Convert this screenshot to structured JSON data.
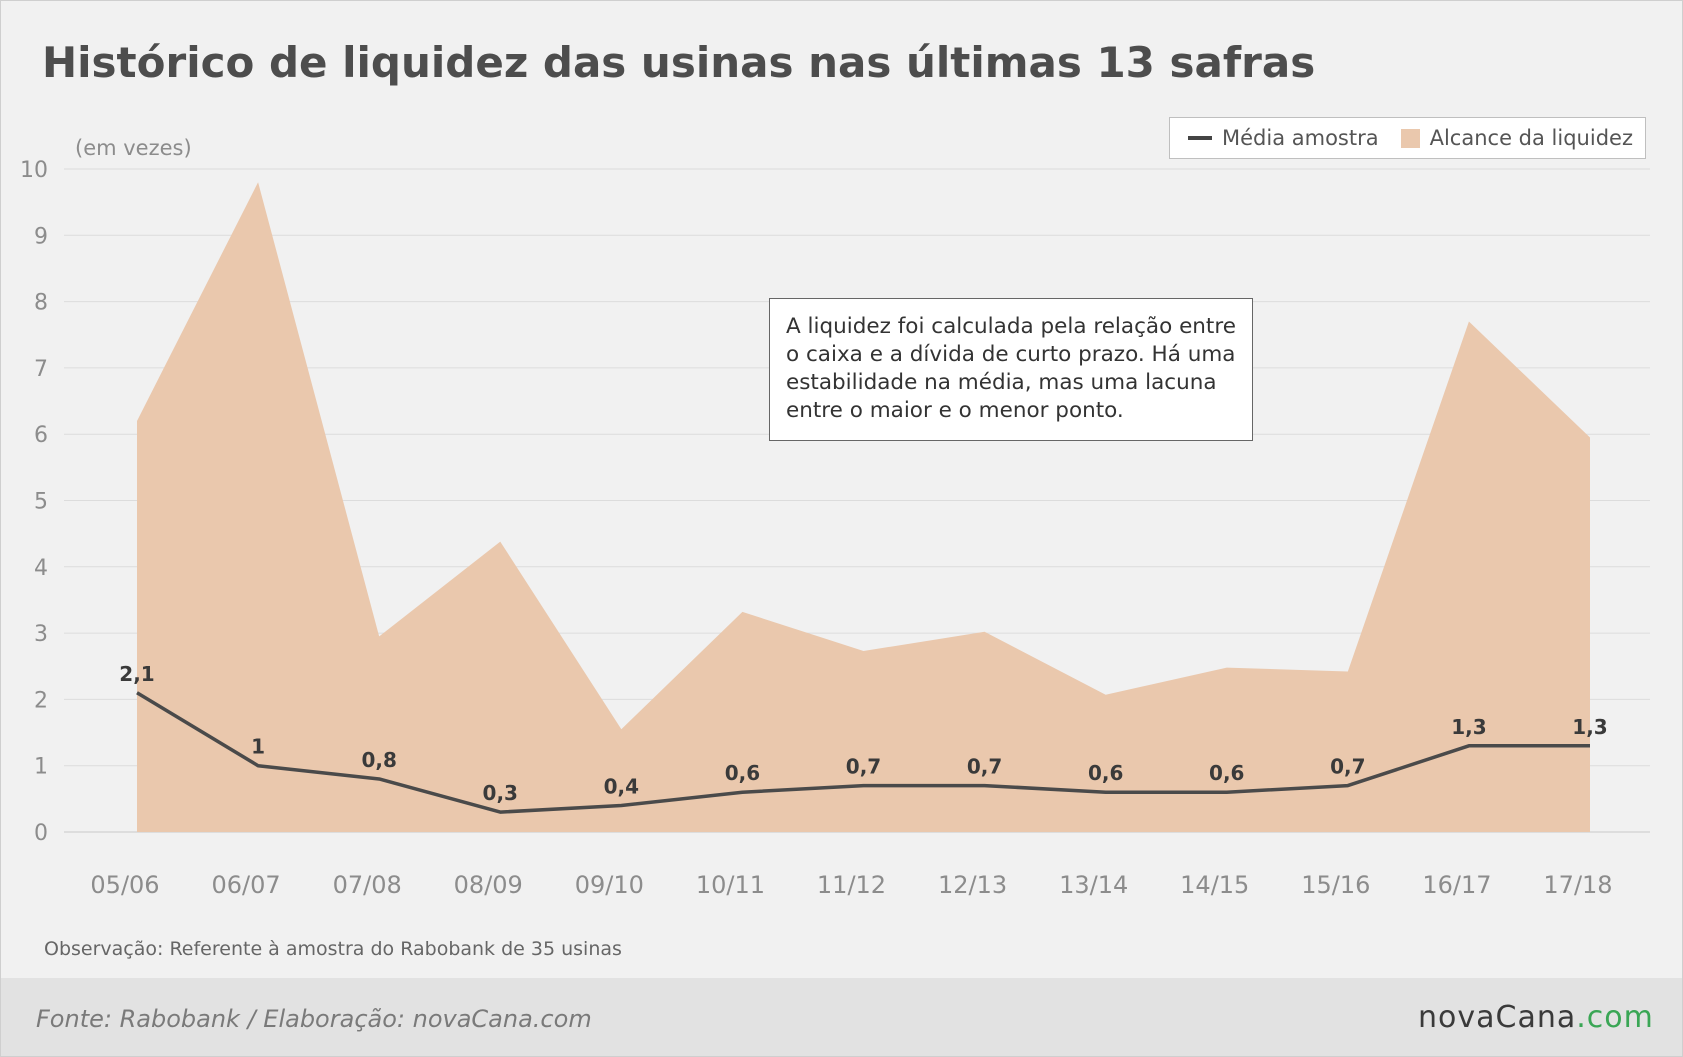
{
  "title": "Histórico de liquidez das usinas nas últimas 13 safras",
  "unit_label": "(em vezes)",
  "legend": {
    "line_label": "Média amostra",
    "area_label": "Alcance da liquidez"
  },
  "note": "A liquidez foi calculada pela relação entre o caixa e a dívida de curto prazo. Há uma estabilidade na média, mas uma lacuna entre o maior e o menor ponto.",
  "observation": "Observação: Referente à amostra do Rabobank de 35 usinas",
  "footer": {
    "source": "Fonte: Rabobank / Elaboração: novaCana.com",
    "brand_part1": "nova",
    "brand_part2": "Cana",
    "brand_part3": ".com"
  },
  "colors": {
    "area": "#eac8ad",
    "line": "#4a4a4a",
    "grid": "#dcdcdc",
    "axis_text": "#8c8c8c",
    "brand_green": "#3aa655"
  },
  "chart_data": {
    "type": "area",
    "categories": [
      "05/06",
      "06/07",
      "07/08",
      "08/09",
      "09/10",
      "10/11",
      "11/12",
      "12/13",
      "13/14",
      "14/15",
      "15/16",
      "16/17",
      "17/18"
    ],
    "series": [
      {
        "name": "Alcance da liquidez",
        "type": "area",
        "values": [
          6.2,
          9.8,
          2.95,
          4.38,
          1.55,
          3.32,
          2.73,
          3.02,
          2.07,
          2.48,
          2.42,
          7.7,
          5.95
        ]
      },
      {
        "name": "Média amostra",
        "type": "line",
        "values": [
          2.1,
          1,
          0.8,
          0.3,
          0.4,
          0.6,
          0.7,
          0.7,
          0.6,
          0.6,
          0.7,
          1.3,
          1.3
        ],
        "labels": [
          "2,1",
          "1",
          "0,8",
          "0,3",
          "0,4",
          "0,6",
          "0,7",
          "0,7",
          "0,6",
          "0,6",
          "0,7",
          "1,3",
          "1,3"
        ]
      }
    ],
    "ylim": [
      0,
      10
    ],
    "yticks": [
      "0",
      "1",
      "2",
      "3",
      "4",
      "5",
      "6",
      "7",
      "8",
      "9",
      "10"
    ],
    "grid": true,
    "legend_position": "top-right"
  }
}
